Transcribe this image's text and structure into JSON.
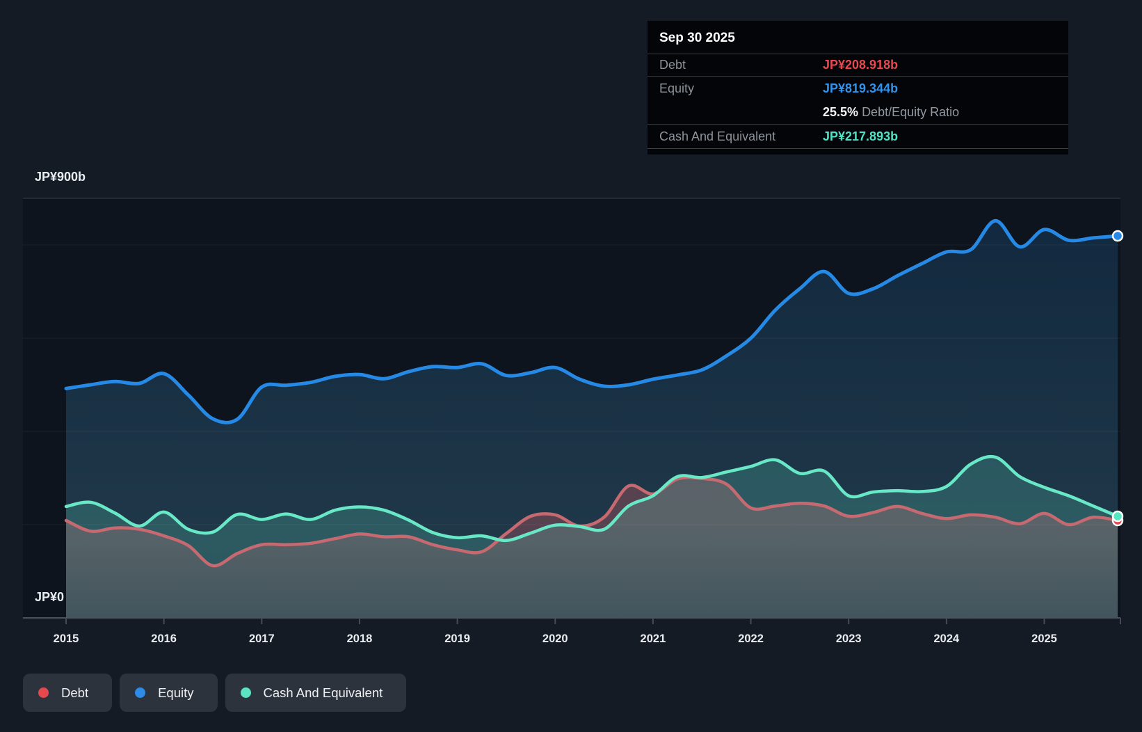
{
  "tooltip": {
    "date": "Sep 30 2025",
    "rows": [
      {
        "label": "Debt",
        "value": "JP¥208.918b",
        "color": "#e8484e"
      },
      {
        "label": "Equity",
        "value": "JP¥819.344b",
        "color": "#3094ef"
      }
    ],
    "ratio": {
      "value": "25.5%",
      "label": "Debt/Equity Ratio"
    },
    "cash_row": {
      "label": "Cash And Equivalent",
      "value": "JP¥217.893b",
      "color": "#4fe3c5"
    }
  },
  "legend": {
    "items": [
      {
        "label": "Debt",
        "color": "#e5484d"
      },
      {
        "label": "Equity",
        "color": "#2e8be6"
      },
      {
        "label": "Cash And Equivalent",
        "color": "#5ee3c1"
      }
    ]
  },
  "chart_data": {
    "type": "area",
    "unit": "JP¥ billions",
    "y_axis": {
      "top_label": "JP¥900b",
      "zero_label": "JP¥0",
      "max": 900,
      "gridline_values": [
        900,
        800,
        600,
        400,
        200
      ],
      "grid_on": true
    },
    "x_ticks": [
      "2015",
      "2016",
      "2017",
      "2018",
      "2019",
      "2020",
      "2021",
      "2022",
      "2023",
      "2024",
      "2025"
    ],
    "x_range": [
      2015.0,
      2025.75
    ],
    "x": [
      2015,
      2015.25,
      2015.5,
      2015.75,
      2016,
      2016.25,
      2016.5,
      2016.75,
      2017,
      2017.25,
      2017.5,
      2017.75,
      2018,
      2018.25,
      2018.5,
      2018.75,
      2019,
      2019.25,
      2019.5,
      2019.75,
      2020,
      2020.25,
      2020.5,
      2020.75,
      2021,
      2021.25,
      2021.5,
      2021.75,
      2022,
      2022.25,
      2022.5,
      2022.75,
      2023,
      2023.25,
      2023.5,
      2023.75,
      2024,
      2024.25,
      2024.5,
      2024.75,
      2025,
      2025.25,
      2025.5,
      2025.75
    ],
    "series": [
      {
        "name": "Debt",
        "line_color": "#c76970",
        "fill_rgb": "217,92,99",
        "end_marker_color": "#e5484d",
        "values": [
          209,
          186,
          193,
          190,
          176,
          155,
          112,
          138,
          157,
          157,
          160,
          170,
          180,
          174,
          174,
          157,
          146,
          142,
          181,
          218,
          221,
          197,
          216,
          283,
          266,
          298,
          299,
          287,
          236,
          240,
          246,
          240,
          218,
          226,
          239,
          224,
          213,
          221,
          216,
          202,
          224,
          200,
          216,
          208.918
        ]
      },
      {
        "name": "Equity",
        "line_color": "#2589e5",
        "fill_rgb": "solid",
        "end_marker_color": "#2589e5",
        "values": [
          492,
          500,
          507,
          503,
          524,
          478,
          427,
          426,
          495,
          499,
          505,
          518,
          522,
          513,
          528,
          539,
          537,
          545,
          520,
          526,
          537,
          512,
          497,
          500,
          512,
          521,
          532,
          562,
          600,
          660,
          706,
          743,
          696,
          706,
          734,
          760,
          785,
          790,
          852,
          796,
          833,
          810,
          815,
          819.344
        ]
      },
      {
        "name": "Cash And Equivalent",
        "line_color": "#68e8c6",
        "fill_rgb": "100,228,198",
        "end_marker_color": "#55e6c2",
        "values": [
          239,
          248,
          225,
          197,
          227,
          190,
          184,
          222,
          211,
          223,
          211,
          231,
          238,
          231,
          210,
          183,
          172,
          176,
          166,
          182,
          199,
          196,
          190,
          240,
          262,
          303,
          301,
          313,
          325,
          339,
          310,
          315,
          262,
          270,
          273,
          271,
          282,
          330,
          345,
          303,
          280,
          262,
          240,
          217.893
        ]
      }
    ],
    "legend_position": "bottom-left"
  }
}
